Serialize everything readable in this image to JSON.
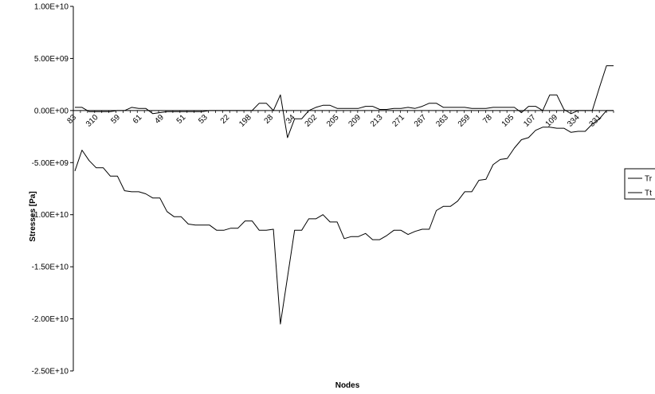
{
  "chart_data": {
    "type": "line",
    "title": "",
    "xlabel": "Nodes",
    "ylabel": "Stresses [Pa]",
    "ylim": [
      -25000000000,
      10000000000
    ],
    "yticks": [
      10000000000,
      5000000000,
      0,
      -5000000000,
      -10000000000,
      -15000000000,
      -20000000000,
      -25000000000
    ],
    "ytick_labels": [
      "1.00E+10",
      "5.00E+09",
      "0.00E+00",
      "-5.00E+09",
      "-1.00E+10",
      "-1.50E+10",
      "-2.00E+10",
      "-2.50E+10"
    ],
    "x_tick_labels": [
      "83",
      "310",
      "59",
      "61",
      "49",
      "51",
      "53",
      "22",
      "198",
      "28",
      "34",
      "202",
      "205",
      "209",
      "213",
      "271",
      "267",
      "263",
      "259",
      "78",
      "105",
      "107",
      "109",
      "334",
      "331"
    ],
    "grid": false,
    "legend": {
      "position": "right",
      "entries": [
        "Tr",
        "Tt"
      ]
    },
    "series": [
      {
        "name": "Tr",
        "values": [
          -5800000000,
          -3800000000,
          -4800000000,
          -5500000000,
          -5500000000,
          -6300000000,
          -6300000000,
          -7700000000,
          -7800000000,
          -7800000000,
          -8000000000,
          -8400000000,
          -8400000000,
          -9700000000,
          -10200000000,
          -10200000000,
          -10900000000,
          -11000000000,
          -11000000000,
          -11000000000,
          -11500000000,
          -11500000000,
          -11300000000,
          -11300000000,
          -10600000000,
          -10600000000,
          -11500000000,
          -11500000000,
          -11400000000,
          -20500000000,
          -16000000000,
          -11500000000,
          -11500000000,
          -10400000000,
          -10400000000,
          -10000000000,
          -10700000000,
          -10700000000,
          -12300000000,
          -12100000000,
          -12100000000,
          -11800000000,
          -12400000000,
          -12400000000,
          -12000000000,
          -11500000000,
          -11500000000,
          -11900000000,
          -11600000000,
          -11400000000,
          -11400000000,
          -9600000000,
          -9200000000,
          -9200000000,
          -8700000000,
          -7800000000,
          -7800000000,
          -6700000000,
          -6600000000,
          -5200000000,
          -4700000000,
          -4600000000,
          -3600000000,
          -2800000000,
          -2600000000,
          -1900000000,
          -1600000000,
          -1600000000,
          -1700000000,
          -1700000000,
          -2100000000,
          -2000000000,
          -2000000000,
          -1300000000,
          -800000000,
          0,
          0
        ]
      },
      {
        "name": "Tt",
        "values": [
          300000000,
          300000000,
          -100000000,
          -100000000,
          -100000000,
          -100000000,
          0,
          0,
          300000000,
          200000000,
          200000000,
          -300000000,
          -200000000,
          -100000000,
          -100000000,
          -100000000,
          -100000000,
          -100000000,
          -100000000,
          0,
          0,
          0,
          0,
          0,
          0,
          0,
          700000000,
          700000000,
          0,
          1500000000,
          -2600000000,
          -800000000,
          -800000000,
          0,
          300000000,
          500000000,
          500000000,
          200000000,
          200000000,
          200000000,
          200000000,
          400000000,
          400000000,
          100000000,
          100000000,
          200000000,
          200000000,
          300000000,
          200000000,
          400000000,
          700000000,
          700000000,
          300000000,
          300000000,
          300000000,
          300000000,
          200000000,
          200000000,
          200000000,
          300000000,
          300000000,
          300000000,
          300000000,
          -200000000,
          400000000,
          400000000,
          0,
          1500000000,
          1500000000,
          100000000,
          -300000000,
          0,
          0,
          0,
          2200000000,
          4300000000,
          4300000000
        ]
      }
    ]
  }
}
